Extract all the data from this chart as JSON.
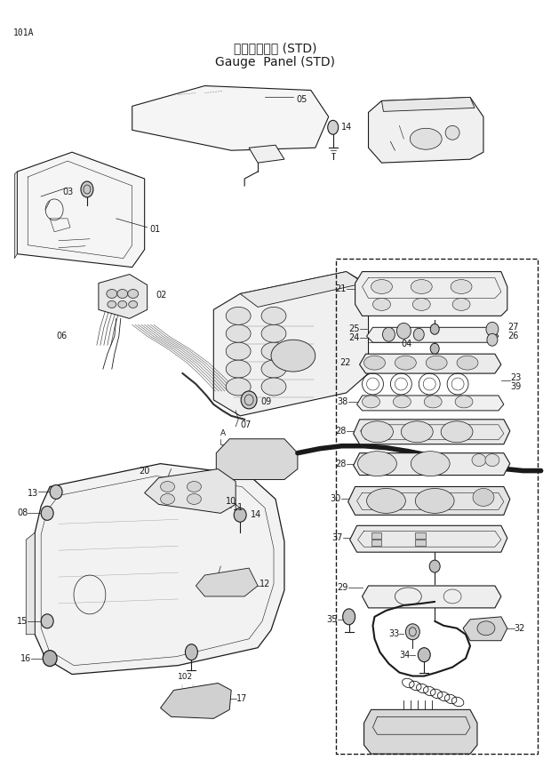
{
  "title_japanese": "ゲージパネル (STD)",
  "title_english": "Gauge  Panel (STD)",
  "page_label": "101A",
  "background_color": "#ffffff",
  "line_color": "#1a1a1a",
  "fig_width": 6.2,
  "fig_height": 8.73,
  "dpi": 100
}
